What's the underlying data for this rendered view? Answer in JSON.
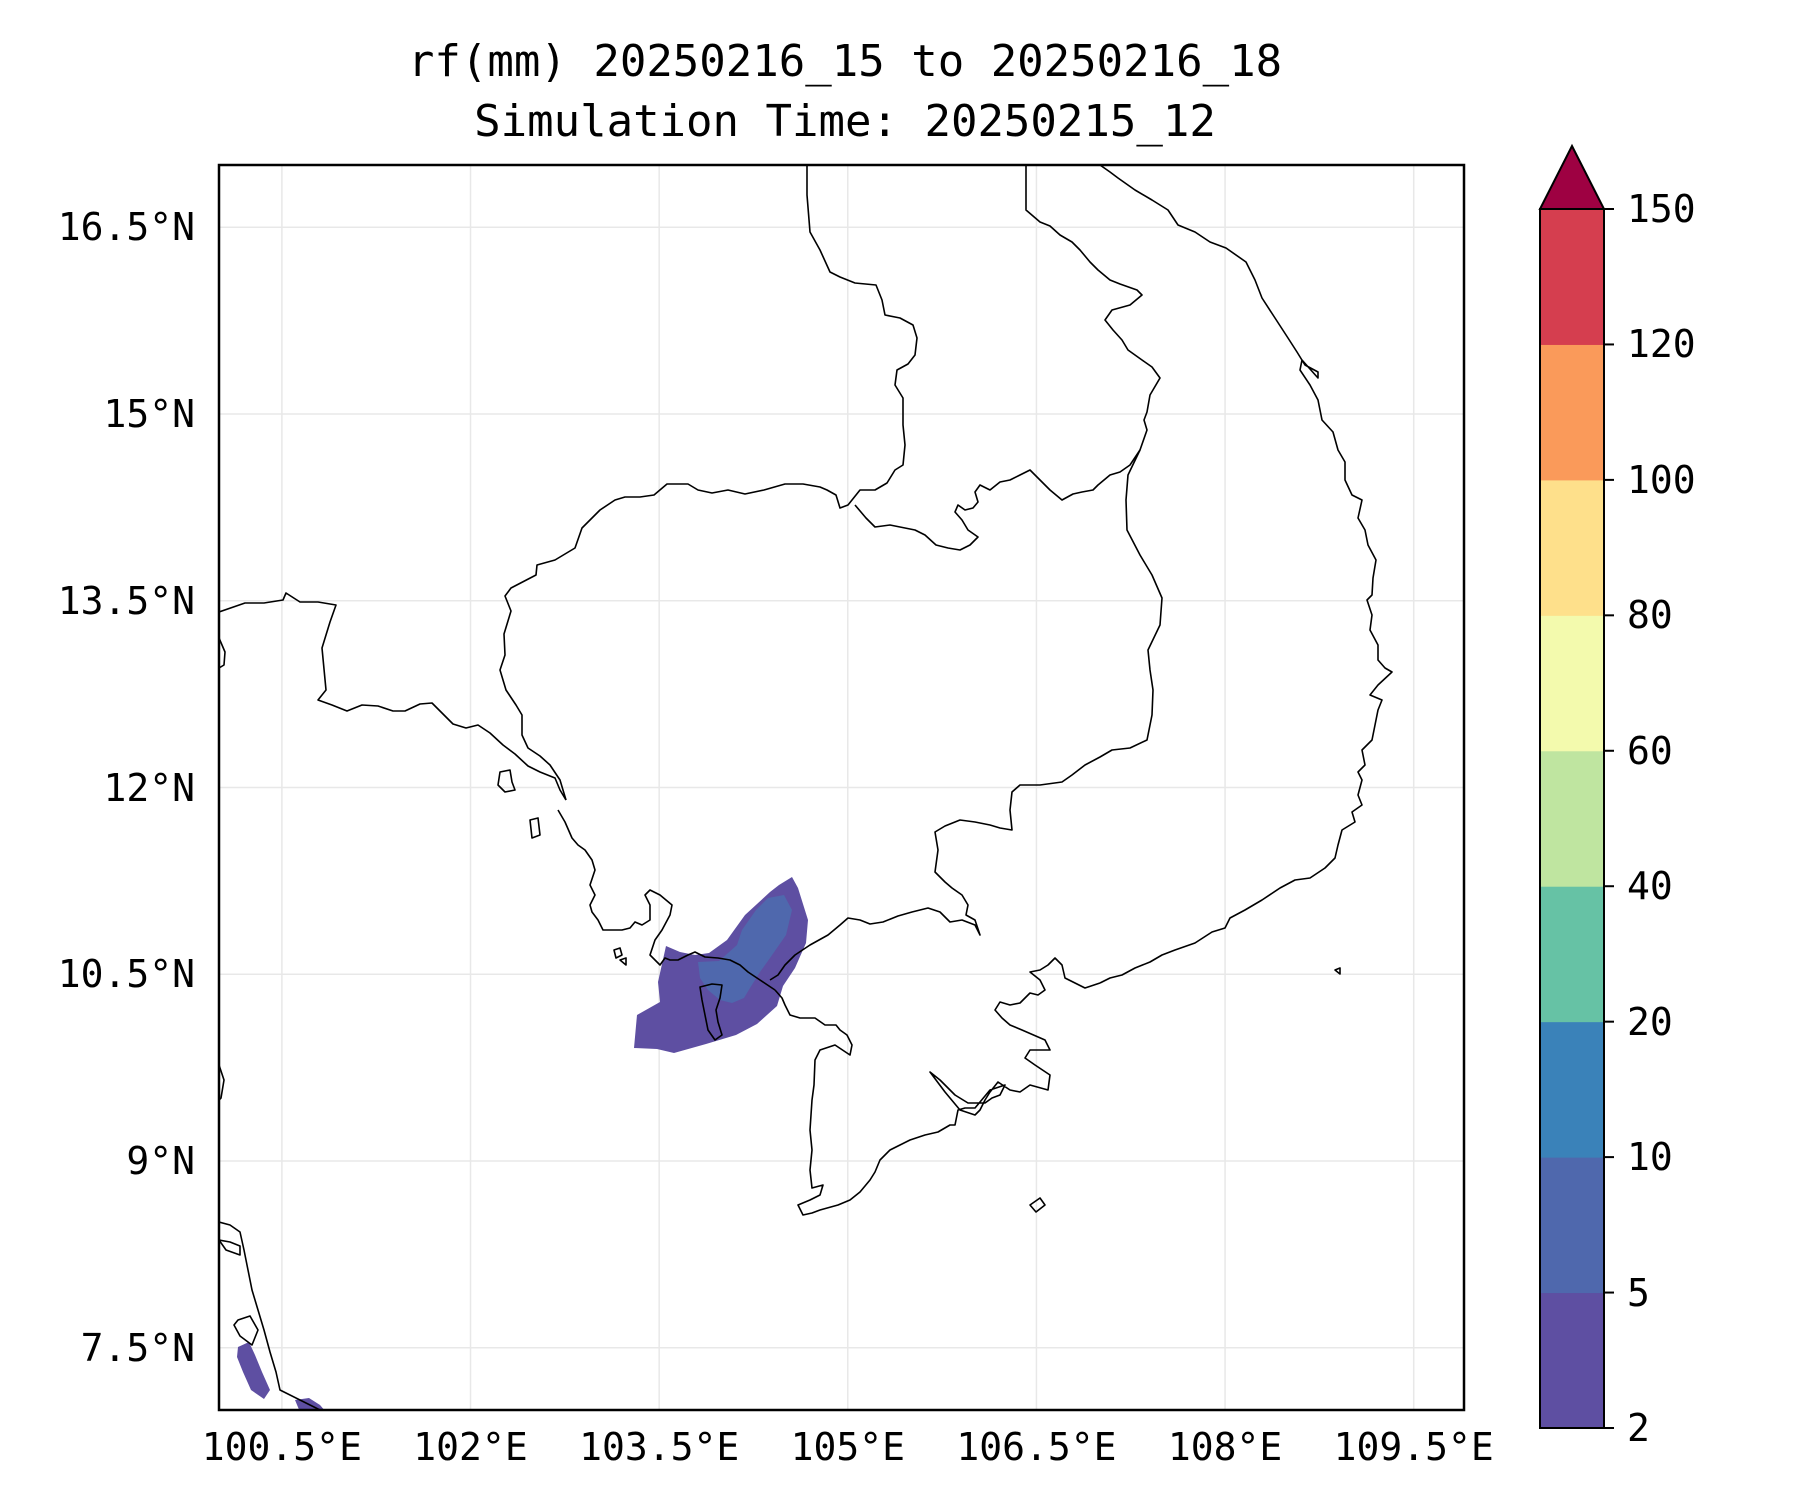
{
  "title": {
    "line1": "rf(mm) 20250216_15 to 20250216_18",
    "line2": "Simulation Time: 20250215_12"
  },
  "axes": {
    "lon_range_deg_e": [
      100.0,
      109.9
    ],
    "lat_range_deg_n": [
      7.0,
      17.0
    ],
    "x_ticks": [
      "100.5°E",
      "102°E",
      "103.5°E",
      "105°E",
      "106.5°E",
      "108°E",
      "109.5°E"
    ],
    "y_ticks": [
      "16.5°N",
      "15°N",
      "13.5°N",
      "12°N",
      "10.5°N",
      "9°N",
      "7.5°N"
    ],
    "grid": true
  },
  "colorbar": {
    "ticks": [
      "150",
      "120",
      "100",
      "80",
      "60",
      "40",
      "20",
      "10",
      "5",
      "2"
    ],
    "levels": [
      2,
      5,
      10,
      20,
      40,
      60,
      80,
      100,
      120,
      150
    ],
    "colors": [
      "#5e4fa2",
      "#4f68ad",
      "#3a82b9",
      "#66c2a5",
      "#bfe5a0",
      "#f3faad",
      "#fee08b",
      "#fa9a5a",
      "#d53e4f"
    ],
    "extend_color": "#9e0142",
    "extend": "max"
  },
  "chart_data": {
    "type": "heatmap",
    "variable": "rf(mm)",
    "period": "20250216_15 to 20250216_18",
    "simulation_time": "20250215_12",
    "units": "mm",
    "region": "Cambodia / southern Vietnam / Gulf of Thailand",
    "precipitation_areas": [
      {
        "location": "Gulf of Thailand near Phu Quoc (approx. 103.4–104.7°E, 10.0–11.2°N)",
        "bin_mm": "2-10",
        "max_bin_mm": "5-10"
      },
      {
        "location": "Malay Peninsula coast (approx. 100.6–100.9°E, 7.0–7.6°N)",
        "bin_mm": "2-5"
      }
    ]
  }
}
